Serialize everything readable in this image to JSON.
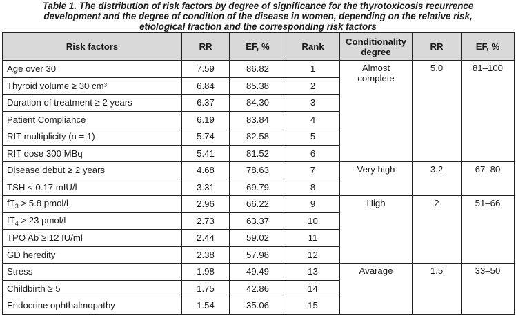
{
  "caption": {
    "line1": "Table 1.  The distribution of risk factors by degree of significance for the thyrotoxicosis recurrence",
    "line2": "development and the degree of condition of the disease in women, depending on the relative risk,",
    "line3": "etiological fraction and the corresponding risk factors"
  },
  "headers": {
    "risk_factors": "Risk factors",
    "rr": "RR",
    "ef": "EF, %",
    "rank": "Rank",
    "conditionality": "Conditionality degree",
    "rr2": "RR",
    "ef2": "EF, %"
  },
  "rows": [
    {
      "factor": "Age over 30",
      "rr": "7.59",
      "ef": "86.82",
      "rank": "1"
    },
    {
      "factor": "Thyroid volume ≥ 30 cm³",
      "rr": "6.84",
      "ef": "85.38",
      "rank": "2"
    },
    {
      "factor": "Duration of treatment ≥ 2 years",
      "rr": "6.37",
      "ef": "84.30",
      "rank": "3"
    },
    {
      "factor": "Patient Compliance",
      "rr": "6.19",
      "ef": "83.84",
      "rank": "4"
    },
    {
      "factor": "RIT multiplicity (n = 1)",
      "rr": "5.74",
      "ef": "82.58",
      "rank": "5"
    },
    {
      "factor": "RIT dose 300 MBq",
      "rr": "5.41",
      "ef": "81.52",
      "rank": "6"
    },
    {
      "factor": "Disease debut ≥ 2 years",
      "rr": "4.68",
      "ef": "78.63",
      "rank": "7"
    },
    {
      "factor": "TSH < 0.17 mIU/l",
      "rr": "3.31",
      "ef": "69.79",
      "rank": "8"
    },
    {
      "factor_pre": "fT",
      "factor_sub": "3",
      "factor_post": " > 5.8 pmol/l",
      "rr": "2.96",
      "ef": "66.22",
      "rank": "9"
    },
    {
      "factor_pre": "fT",
      "factor_sub": "4",
      "factor_post": " > 23 pmol/l",
      "rr": "2.73",
      "ef": "63.37",
      "rank": "10"
    },
    {
      "factor": "TPO Ab ≥ 12 IU/ml",
      "rr": "2.44",
      "ef": "59.02",
      "rank": "11"
    },
    {
      "factor": "GD heredity",
      "rr": "2.38",
      "ef": "57.98",
      "rank": "12"
    },
    {
      "factor": "Stress",
      "rr": "1.98",
      "ef": "49.49",
      "rank": "13"
    },
    {
      "factor": "Childbirth ≥ 5",
      "rr": "1.75",
      "ef": "42.86",
      "rank": "14"
    },
    {
      "factor": "Endocrine ophthalmopathy",
      "rr": "1.54",
      "ef": "35.06",
      "rank": "15"
    }
  ],
  "groups": [
    {
      "degree_line1": "Almost",
      "degree_line2": "complete",
      "rr": "5.0",
      "ef": "81–100"
    },
    {
      "degree_line1": "Very high",
      "degree_line2": "",
      "rr": "3.2",
      "ef": "67–80"
    },
    {
      "degree_line1": "High",
      "degree_line2": "",
      "rr": "2",
      "ef": "51–66"
    },
    {
      "degree_line1": "Avarage",
      "degree_line2": "",
      "rr": "1.5",
      "ef": "33–50"
    }
  ]
}
